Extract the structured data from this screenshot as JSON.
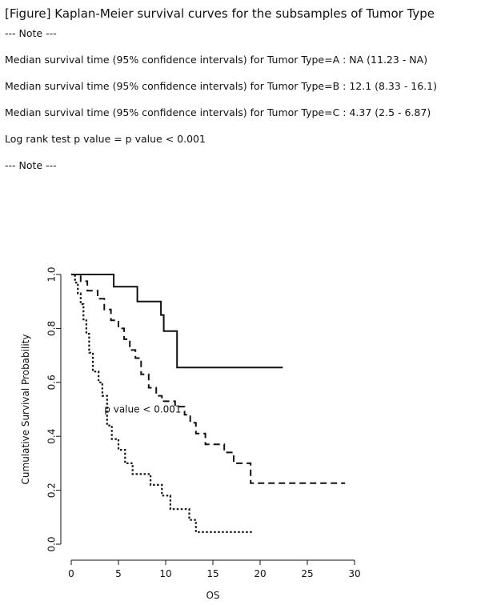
{
  "header": {
    "title": "[Figure] Kaplan-Meier survival curves for the subsamples of Tumor Type",
    "note_open": "--- Note ---",
    "lines": [
      "Median survival time (95% confidence intervals) for Tumor Type=A : NA (11.23 - NA)",
      "Median survival time (95% confidence intervals) for Tumor Type=B : 12.1 (8.33 - 16.1)",
      "Median survival time (95% confidence intervals) for Tumor Type=C : 4.37 (2.5 - 6.87)",
      "Log rank test p value = p value < 0.001"
    ],
    "note_close": "--- Note ---"
  },
  "chart_data": {
    "type": "line",
    "step": true,
    "title": "",
    "xlabel": "OS",
    "ylabel": "Cumulative Survival Probability",
    "xlim": [
      0,
      30
    ],
    "ylim": [
      0,
      1
    ],
    "x_ticks": [
      0,
      5,
      10,
      15,
      20,
      25,
      30
    ],
    "y_ticks": [
      0.0,
      0.2,
      0.4,
      0.6,
      0.8,
      1.0
    ],
    "x_tick_labels": [
      "0",
      "5",
      "10",
      "15",
      "20",
      "25",
      "30"
    ],
    "y_tick_labels": [
      "0.0",
      "0.2",
      "0.4",
      "0.6",
      "0.8",
      "1.0"
    ],
    "grid": false,
    "annotation": {
      "text": "p value < 0.001",
      "x": 3.5,
      "y": 0.5
    },
    "series": [
      {
        "style": "solid",
        "points": [
          [
            0,
            1.0
          ],
          [
            4.5,
            1.0
          ],
          [
            4.5,
            0.955
          ],
          [
            7,
            0.955
          ],
          [
            7,
            0.9
          ],
          [
            9.5,
            0.9
          ],
          [
            9.5,
            0.85
          ],
          [
            9.8,
            0.85
          ],
          [
            9.8,
            0.79
          ],
          [
            11.2,
            0.79
          ],
          [
            11.2,
            0.655
          ],
          [
            22.4,
            0.655
          ]
        ]
      },
      {
        "style": "dashed",
        "points": [
          [
            0,
            1.0
          ],
          [
            1,
            1.0
          ],
          [
            1,
            0.975
          ],
          [
            1.7,
            0.975
          ],
          [
            1.7,
            0.94
          ],
          [
            2.8,
            0.94
          ],
          [
            2.8,
            0.91
          ],
          [
            3.5,
            0.91
          ],
          [
            3.5,
            0.87
          ],
          [
            4.2,
            0.87
          ],
          [
            4.2,
            0.83
          ],
          [
            5,
            0.83
          ],
          [
            5,
            0.8
          ],
          [
            5.6,
            0.8
          ],
          [
            5.6,
            0.76
          ],
          [
            6.2,
            0.76
          ],
          [
            6.2,
            0.72
          ],
          [
            6.8,
            0.72
          ],
          [
            6.8,
            0.69
          ],
          [
            7.4,
            0.69
          ],
          [
            7.4,
            0.63
          ],
          [
            8.2,
            0.63
          ],
          [
            8.2,
            0.58
          ],
          [
            9,
            0.58
          ],
          [
            9,
            0.55
          ],
          [
            9.6,
            0.55
          ],
          [
            9.6,
            0.53
          ],
          [
            11,
            0.53
          ],
          [
            11,
            0.51
          ],
          [
            12,
            0.51
          ],
          [
            12,
            0.48
          ],
          [
            12.6,
            0.48
          ],
          [
            12.6,
            0.45
          ],
          [
            13.2,
            0.45
          ],
          [
            13.2,
            0.41
          ],
          [
            14.2,
            0.41
          ],
          [
            14.2,
            0.37
          ],
          [
            16.2,
            0.37
          ],
          [
            16.2,
            0.34
          ],
          [
            17.2,
            0.34
          ],
          [
            17.2,
            0.3
          ],
          [
            19,
            0.3
          ],
          [
            19,
            0.226
          ],
          [
            29,
            0.226
          ]
        ]
      },
      {
        "style": "dotted",
        "points": [
          [
            0,
            1.0
          ],
          [
            0.4,
            1.0
          ],
          [
            0.4,
            0.97
          ],
          [
            0.7,
            0.97
          ],
          [
            0.7,
            0.93
          ],
          [
            1,
            0.93
          ],
          [
            1,
            0.89
          ],
          [
            1.3,
            0.89
          ],
          [
            1.3,
            0.83
          ],
          [
            1.6,
            0.83
          ],
          [
            1.6,
            0.78
          ],
          [
            1.9,
            0.78
          ],
          [
            1.9,
            0.71
          ],
          [
            2.3,
            0.71
          ],
          [
            2.3,
            0.64
          ],
          [
            2.9,
            0.64
          ],
          [
            2.9,
            0.6
          ],
          [
            3.3,
            0.6
          ],
          [
            3.3,
            0.55
          ],
          [
            3.8,
            0.55
          ],
          [
            3.8,
            0.44
          ],
          [
            4.3,
            0.44
          ],
          [
            4.3,
            0.39
          ],
          [
            5,
            0.39
          ],
          [
            5,
            0.35
          ],
          [
            5.7,
            0.35
          ],
          [
            5.7,
            0.3
          ],
          [
            6.5,
            0.3
          ],
          [
            6.5,
            0.26
          ],
          [
            8.4,
            0.26
          ],
          [
            8.4,
            0.22
          ],
          [
            9.6,
            0.22
          ],
          [
            9.6,
            0.18
          ],
          [
            10.5,
            0.18
          ],
          [
            10.5,
            0.13
          ],
          [
            12.5,
            0.13
          ],
          [
            12.5,
            0.09
          ],
          [
            13.2,
            0.09
          ],
          [
            13.2,
            0.045
          ],
          [
            19.3,
            0.045
          ]
        ]
      }
    ]
  }
}
